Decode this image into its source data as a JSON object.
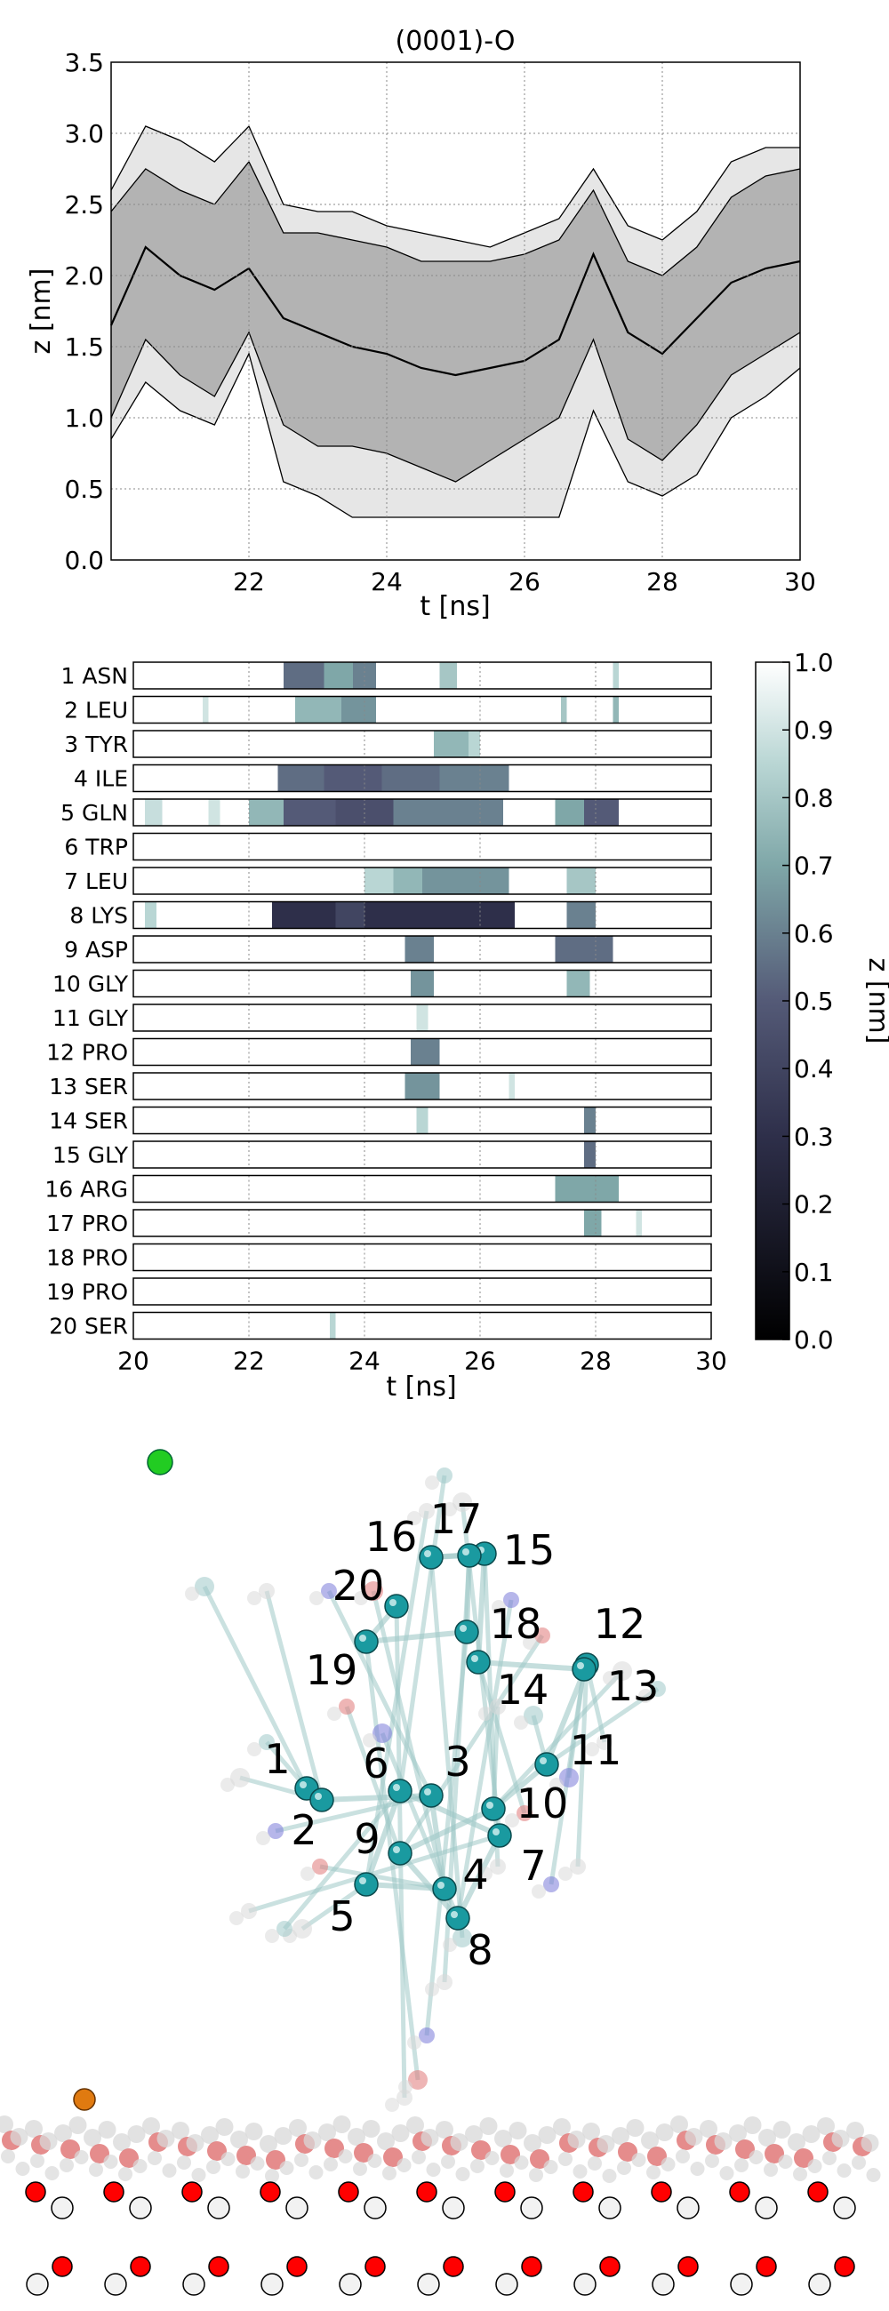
{
  "chart_data": [
    {
      "type": "area",
      "title": "(0001)-O",
      "xlabel": "t [ns]",
      "ylabel": "z [nm]",
      "xlim": [
        20,
        30
      ],
      "ylim": [
        0,
        3.5
      ],
      "xticks": [
        "22",
        "24",
        "26",
        "28",
        "30"
      ],
      "yticks": [
        "0.0",
        "0.5",
        "1.0",
        "1.5",
        "2.0",
        "2.5",
        "3.0",
        "3.5"
      ],
      "grid": true,
      "x": [
        20.0,
        20.5,
        21.0,
        21.5,
        22.0,
        22.5,
        23.0,
        23.5,
        24.0,
        24.5,
        25.0,
        25.5,
        26.0,
        26.5,
        27.0,
        27.5,
        28.0,
        28.5,
        29.0,
        29.5,
        30.0
      ],
      "series": [
        {
          "role": "outer-upper",
          "values": [
            2.6,
            3.05,
            2.95,
            2.8,
            3.05,
            2.5,
            2.45,
            2.45,
            2.35,
            2.3,
            2.25,
            2.2,
            2.3,
            2.4,
            2.75,
            2.35,
            2.25,
            2.45,
            2.8,
            2.9,
            2.9
          ]
        },
        {
          "role": "inner-upper",
          "values": [
            2.45,
            2.75,
            2.6,
            2.5,
            2.8,
            2.3,
            2.3,
            2.25,
            2.2,
            2.1,
            2.1,
            2.1,
            2.15,
            2.25,
            2.6,
            2.1,
            2.0,
            2.2,
            2.55,
            2.7,
            2.75
          ]
        },
        {
          "role": "median",
          "values": [
            1.65,
            2.2,
            2.0,
            1.9,
            2.05,
            1.7,
            1.6,
            1.5,
            1.45,
            1.35,
            1.3,
            1.35,
            1.4,
            1.55,
            2.15,
            1.6,
            1.45,
            1.7,
            1.95,
            2.05,
            2.1
          ]
        },
        {
          "role": "inner-lower",
          "values": [
            1.0,
            1.55,
            1.3,
            1.15,
            1.6,
            0.95,
            0.8,
            0.8,
            0.75,
            0.65,
            0.55,
            0.7,
            0.85,
            1.0,
            1.55,
            0.85,
            0.7,
            0.95,
            1.3,
            1.45,
            1.6
          ]
        },
        {
          "role": "outer-lower",
          "values": [
            0.85,
            1.25,
            1.05,
            0.95,
            1.45,
            0.55,
            0.45,
            0.3,
            0.3,
            0.3,
            0.3,
            0.3,
            0.3,
            0.3,
            1.05,
            0.55,
            0.45,
            0.6,
            1.0,
            1.15,
            1.35
          ]
        }
      ]
    },
    {
      "type": "heatmap",
      "xlabel": "t [ns]",
      "xlim": [
        20,
        30
      ],
      "xticks": [
        "20",
        "22",
        "24",
        "26",
        "28",
        "30"
      ],
      "colorbar": {
        "label": "z [nm]",
        "range": [
          0.0,
          1.0
        ],
        "ticks": [
          "0.0",
          "0.1",
          "0.2",
          "0.3",
          "0.4",
          "0.5",
          "0.6",
          "0.7",
          "0.8",
          "0.9",
          "1.0"
        ]
      },
      "rows": [
        {
          "label": "1 ASN",
          "segments": [
            [
              22.6,
              23.3,
              0.55
            ],
            [
              23.3,
              23.8,
              0.7
            ],
            [
              23.8,
              24.2,
              0.6
            ],
            [
              25.3,
              25.6,
              0.8
            ],
            [
              28.3,
              28.4,
              0.85
            ]
          ]
        },
        {
          "label": "2 LEU",
          "segments": [
            [
              21.2,
              21.3,
              0.9
            ],
            [
              22.8,
              23.6,
              0.75
            ],
            [
              23.6,
              24.2,
              0.65
            ],
            [
              27.4,
              27.5,
              0.8
            ],
            [
              28.3,
              28.4,
              0.75
            ]
          ]
        },
        {
          "label": "3 TYR",
          "segments": [
            [
              25.2,
              25.8,
              0.75
            ],
            [
              25.8,
              26.0,
              0.85
            ]
          ]
        },
        {
          "label": "4 ILE",
          "segments": [
            [
              22.5,
              23.3,
              0.55
            ],
            [
              23.3,
              24.3,
              0.5
            ],
            [
              24.3,
              25.3,
              0.55
            ],
            [
              25.3,
              26.5,
              0.6
            ]
          ]
        },
        {
          "label": "5 GLN",
          "segments": [
            [
              20.2,
              20.5,
              0.88
            ],
            [
              21.3,
              21.5,
              0.9
            ],
            [
              22.0,
              22.6,
              0.75
            ],
            [
              22.6,
              23.5,
              0.5
            ],
            [
              23.5,
              24.5,
              0.45
            ],
            [
              24.5,
              26.4,
              0.6
            ],
            [
              27.3,
              27.8,
              0.7
            ],
            [
              27.8,
              28.4,
              0.5
            ]
          ]
        },
        {
          "label": "6 TRP",
          "segments": []
        },
        {
          "label": "7 LEU",
          "segments": [
            [
              24.0,
              24.5,
              0.85
            ],
            [
              24.5,
              25.0,
              0.75
            ],
            [
              25.0,
              26.5,
              0.65
            ],
            [
              27.5,
              28.0,
              0.8
            ]
          ]
        },
        {
          "label": "8 LYS",
          "segments": [
            [
              20.2,
              20.4,
              0.85
            ],
            [
              22.4,
              23.5,
              0.3
            ],
            [
              23.5,
              24.0,
              0.4
            ],
            [
              24.0,
              26.6,
              0.3
            ],
            [
              27.5,
              28.0,
              0.6
            ]
          ]
        },
        {
          "label": "9 ASP",
          "segments": [
            [
              24.7,
              25.2,
              0.6
            ],
            [
              27.3,
              28.3,
              0.55
            ]
          ]
        },
        {
          "label": "10 GLY",
          "segments": [
            [
              24.8,
              25.2,
              0.65
            ],
            [
              27.5,
              27.9,
              0.75
            ]
          ]
        },
        {
          "label": "11 GLY",
          "segments": [
            [
              24.9,
              25.1,
              0.9
            ]
          ]
        },
        {
          "label": "12 PRO",
          "segments": [
            [
              24.8,
              25.3,
              0.6
            ]
          ]
        },
        {
          "label": "13 SER",
          "segments": [
            [
              24.7,
              25.3,
              0.65
            ],
            [
              26.5,
              26.6,
              0.9
            ]
          ]
        },
        {
          "label": "14 SER",
          "segments": [
            [
              24.9,
              25.1,
              0.85
            ],
            [
              27.8,
              28.0,
              0.6
            ]
          ]
        },
        {
          "label": "15 GLY",
          "segments": [
            [
              27.8,
              28.0,
              0.55
            ]
          ]
        },
        {
          "label": "16 ARG",
          "segments": [
            [
              27.3,
              28.4,
              0.7
            ]
          ]
        },
        {
          "label": "17 PRO",
          "segments": [
            [
              27.8,
              28.1,
              0.7
            ],
            [
              28.7,
              28.8,
              0.9
            ]
          ]
        },
        {
          "label": "18 PRO",
          "segments": []
        },
        {
          "label": "19 PRO",
          "segments": []
        },
        {
          "label": "20 SER",
          "segments": [
            [
              23.4,
              23.5,
              0.85
            ]
          ]
        }
      ]
    }
  ],
  "molecule": {
    "residue_labels": [
      "1",
      "2",
      "3",
      "4",
      "5",
      "6",
      "7",
      "8",
      "9",
      "10",
      "11",
      "12",
      "13",
      "14",
      "15",
      "16",
      "17",
      "18",
      "19",
      "20"
    ],
    "colors": {
      "ca_atom": "#1a9aa0",
      "carbon": "#9fc9c8",
      "nitrogen": "#7a7ad8",
      "oxygen": "#e07878",
      "hydrogen": "#d8d8d8",
      "surface_o": "#ff0000",
      "surface_zn": "#f2f2f2",
      "ion_green": "#22cc22",
      "ion_orange": "#e07a10"
    }
  }
}
